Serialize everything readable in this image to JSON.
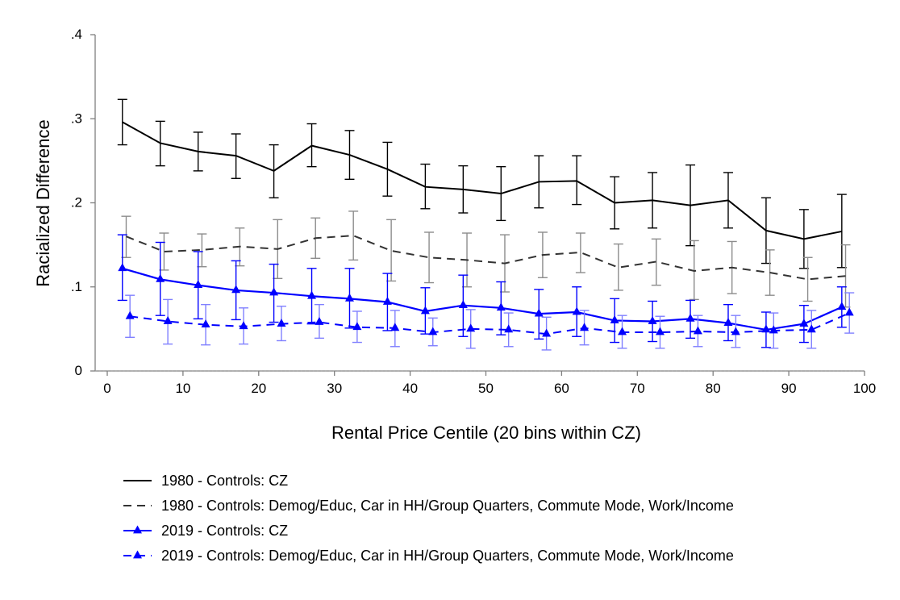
{
  "chart_data": {
    "type": "line",
    "title": "",
    "xlabel": "Rental Price Centile (20 bins within CZ)",
    "ylabel": "Racialized Difference",
    "xlim": [
      0,
      100
    ],
    "ylim": [
      0,
      0.4
    ],
    "xticks": [
      0,
      10,
      20,
      30,
      40,
      50,
      60,
      70,
      80,
      90,
      100
    ],
    "xtick_labels": [
      "0",
      "10",
      "20",
      "30",
      "40",
      "50",
      "60",
      "70",
      "80",
      "90",
      "100"
    ],
    "yticks": [
      0,
      0.1,
      0.2,
      0.3,
      0.4
    ],
    "ytick_labels": [
      "0",
      ".1",
      ".2",
      ".3",
      ".4"
    ],
    "grid": false,
    "reference_line": {
      "y": 0,
      "style": "dotted"
    },
    "legend_position": "bottom",
    "series": [
      {
        "name": "1980 - Controls: CZ",
        "color": "#000000",
        "dashed": false,
        "marker": "none",
        "error_color": "#000000",
        "x": [
          2,
          7,
          12,
          17,
          22,
          27,
          32,
          37,
          42,
          47,
          52,
          57,
          62,
          67,
          72,
          77,
          82,
          87,
          92,
          97
        ],
        "values": [
          0.296,
          0.271,
          0.261,
          0.256,
          0.238,
          0.268,
          0.257,
          0.24,
          0.219,
          0.216,
          0.211,
          0.225,
          0.226,
          0.2,
          0.203,
          0.197,
          0.203,
          0.167,
          0.157,
          0.166
        ],
        "lower": [
          0.269,
          0.244,
          0.238,
          0.229,
          0.206,
          0.243,
          0.228,
          0.208,
          0.193,
          0.188,
          0.179,
          0.194,
          0.198,
          0.169,
          0.17,
          0.149,
          0.17,
          0.128,
          0.122,
          0.123
        ],
        "upper": [
          0.323,
          0.297,
          0.284,
          0.282,
          0.269,
          0.294,
          0.286,
          0.272,
          0.246,
          0.244,
          0.243,
          0.256,
          0.256,
          0.231,
          0.236,
          0.245,
          0.236,
          0.206,
          0.192,
          0.21
        ]
      },
      {
        "name": "1980 - Controls: Demog/Educ, Car in HH/Group Quarters, Commute Mode, Work/Income",
        "color": "#333333",
        "dashed": true,
        "marker": "none",
        "error_color": "#8c8c8c",
        "x": [
          2.5,
          7.5,
          12.5,
          17.5,
          22.5,
          27.5,
          32.5,
          37.5,
          42.5,
          47.5,
          52.5,
          57.5,
          62.5,
          67.5,
          72.5,
          77.5,
          82.5,
          87.5,
          92.5,
          97.5
        ],
        "values": [
          0.16,
          0.142,
          0.144,
          0.148,
          0.145,
          0.158,
          0.161,
          0.143,
          0.135,
          0.132,
          0.128,
          0.138,
          0.141,
          0.123,
          0.13,
          0.119,
          0.123,
          0.117,
          0.109,
          0.113
        ],
        "lower": [
          0.135,
          0.12,
          0.124,
          0.125,
          0.11,
          0.134,
          0.132,
          0.107,
          0.105,
          0.1,
          0.094,
          0.111,
          0.117,
          0.096,
          0.102,
          0.085,
          0.092,
          0.09,
          0.083,
          0.076
        ],
        "upper": [
          0.184,
          0.164,
          0.163,
          0.17,
          0.18,
          0.182,
          0.19,
          0.18,
          0.165,
          0.164,
          0.162,
          0.165,
          0.164,
          0.151,
          0.157,
          0.155,
          0.154,
          0.144,
          0.135,
          0.15
        ]
      },
      {
        "name": "2019 - Controls: CZ",
        "color": "#0000ff",
        "dashed": false,
        "marker": "triangle",
        "error_color": "#0000ff",
        "x": [
          2,
          7,
          12,
          17,
          22,
          27,
          32,
          37,
          42,
          47,
          52,
          57,
          62,
          67,
          72,
          77,
          82,
          87,
          92,
          97
        ],
        "values": [
          0.122,
          0.109,
          0.102,
          0.096,
          0.093,
          0.089,
          0.086,
          0.082,
          0.071,
          0.078,
          0.075,
          0.068,
          0.07,
          0.06,
          0.059,
          0.062,
          0.057,
          0.049,
          0.056,
          0.076
        ],
        "lower": [
          0.084,
          0.066,
          0.062,
          0.061,
          0.058,
          0.056,
          0.051,
          0.048,
          0.044,
          0.041,
          0.043,
          0.038,
          0.041,
          0.034,
          0.035,
          0.039,
          0.036,
          0.028,
          0.034,
          0.052
        ],
        "upper": [
          0.162,
          0.153,
          0.142,
          0.131,
          0.127,
          0.122,
          0.122,
          0.116,
          0.099,
          0.114,
          0.106,
          0.097,
          0.1,
          0.086,
          0.083,
          0.084,
          0.079,
          0.07,
          0.078,
          0.1
        ]
      },
      {
        "name": "2019 - Controls: Demog/Educ, Car in HH/Group Quarters, Commute Mode, Work/Income",
        "color": "#0000ff",
        "dashed": true,
        "marker": "triangle",
        "error_color": "#8080ff",
        "x": [
          3,
          8,
          13,
          18,
          23,
          28,
          33,
          38,
          43,
          48,
          53,
          58,
          63,
          68,
          73,
          78,
          83,
          88,
          93,
          98
        ],
        "values": [
          0.065,
          0.059,
          0.055,
          0.053,
          0.056,
          0.058,
          0.052,
          0.051,
          0.046,
          0.05,
          0.049,
          0.044,
          0.051,
          0.046,
          0.046,
          0.047,
          0.046,
          0.048,
          0.049,
          0.069
        ],
        "lower": [
          0.04,
          0.032,
          0.031,
          0.032,
          0.036,
          0.039,
          0.034,
          0.029,
          0.03,
          0.027,
          0.029,
          0.025,
          0.031,
          0.027,
          0.027,
          0.029,
          0.028,
          0.027,
          0.027,
          0.045
        ],
        "upper": [
          0.09,
          0.085,
          0.079,
          0.075,
          0.077,
          0.079,
          0.071,
          0.072,
          0.063,
          0.073,
          0.069,
          0.064,
          0.072,
          0.066,
          0.065,
          0.066,
          0.066,
          0.069,
          0.072,
          0.093
        ]
      }
    ]
  }
}
